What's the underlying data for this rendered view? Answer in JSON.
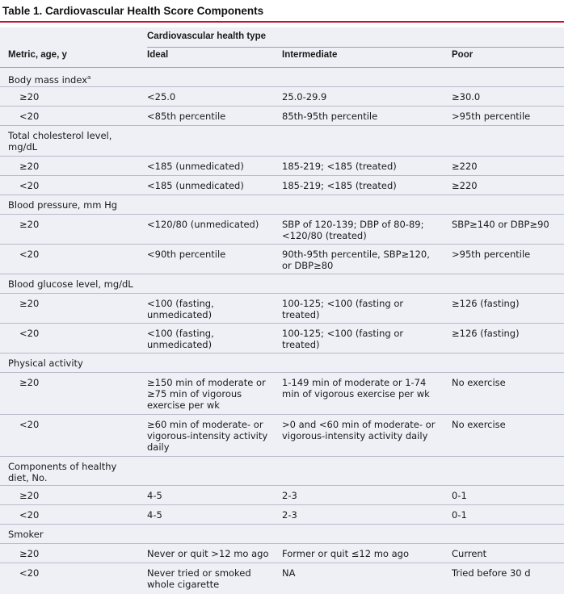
{
  "title": "Table 1. Cardiovascular Health Score Components",
  "header": {
    "type_label": "Cardiovascular health type",
    "col_metric": "Metric, age, y",
    "col_ideal": "Ideal",
    "col_intermediate": "Intermediate",
    "col_poor": "Poor"
  },
  "groups": [
    {
      "label": "Body mass index",
      "note": "a"
    },
    {
      "label": "Total cholesterol level,\nmg/dL"
    },
    {
      "label": "Blood pressure, mm Hg"
    },
    {
      "label": "Blood glucose level, mg/dL"
    },
    {
      "label": "Physical activity"
    },
    {
      "label": "Components of healthy\ndiet, No."
    },
    {
      "label": "Smoker"
    }
  ],
  "rows": [
    [
      "≥20",
      "<25.0",
      "25.0-29.9",
      "≥30.0"
    ],
    [
      "<20",
      "<85th percentile",
      "85th-95th percentile",
      ">95th percentile"
    ],
    [
      "≥20",
      "<185 (unmedicated)",
      "185-219; <185 (treated)",
      "≥220"
    ],
    [
      "<20",
      "<185 (unmedicated)",
      "185-219; <185 (treated)",
      "≥220"
    ],
    [
      "≥20",
      "<120/80 (unmedicated)",
      "SBP of 120-139; DBP of 80-89;\n<120/80 (treated)",
      "SBP≥140 or DBP≥90"
    ],
    [
      "<20",
      "<90th percentile",
      "90th-95th percentile, SBP≥120,\nor DBP≥80",
      ">95th percentile"
    ],
    [
      "≥20",
      "<100 (fasting,\nunmedicated)",
      "100-125; <100 (fasting or\ntreated)",
      "≥126 (fasting)"
    ],
    [
      "<20",
      "<100 (fasting,\nunmedicated)",
      "100-125; <100 (fasting or\ntreated)",
      "≥126 (fasting)"
    ],
    [
      "≥20",
      "≥150 min of moderate or\n≥75 min of vigorous\nexercise per wk",
      "1-149 min of moderate or 1-74\nmin of vigorous exercise per wk",
      "No exercise"
    ],
    [
      "<20",
      "≥60 min of moderate- or\nvigorous-intensity activity\ndaily",
      ">0 and <60 min of moderate- or\nvigorous-intensity activity daily",
      "No exercise"
    ],
    [
      "≥20",
      "4-5",
      "2-3",
      "0-1"
    ],
    [
      "<20",
      "4-5",
      "2-3",
      "0-1"
    ],
    [
      "≥20",
      "Never or quit >12 mo ago",
      "Former or quit ≤12 mo ago",
      "Current"
    ],
    [
      "<20",
      "Never tried or smoked\nwhole cigarette",
      "NA",
      "Tried before 30 d"
    ]
  ]
}
